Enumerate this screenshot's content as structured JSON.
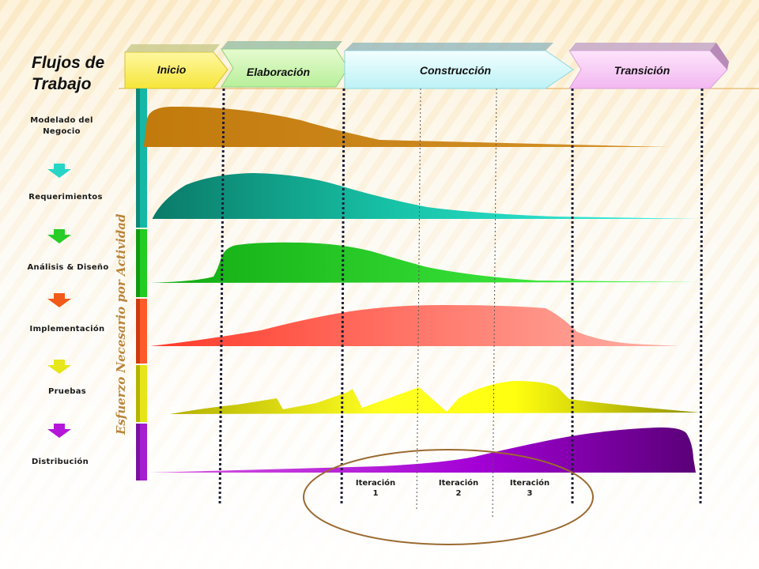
{
  "title_line1": "Flujos de",
  "title_line2": "Trabajo",
  "phases": [
    "Inicio",
    "Elaboración",
    "Construcción",
    "Transición"
  ],
  "workflows": [
    "Modelado del Negocio",
    "Requerimientos",
    "Análisis & Diseño",
    "Implementación",
    "Pruebas",
    "Distribución"
  ],
  "workflow_line1": "Modelado del",
  "workflow_line2": "Negocio",
  "vertical_label": "Esfuerzo Necesario por Actividad",
  "iterations": [
    {
      "line1": "Iteración",
      "line2": "1"
    },
    {
      "line1": "Iteración",
      "line2": "2"
    },
    {
      "line1": "Iteración",
      "line2": "3"
    }
  ],
  "colors": {
    "modelado": "#c9810f",
    "requerimientos": "#13b8a2",
    "analisis": "#2cd12c",
    "implementacion": "#ff5a4a",
    "pruebas": "#e8e81a",
    "distribucion": "#9400c8",
    "ellipse": "#9b6a30",
    "dotted": "#1a1a2e"
  }
}
